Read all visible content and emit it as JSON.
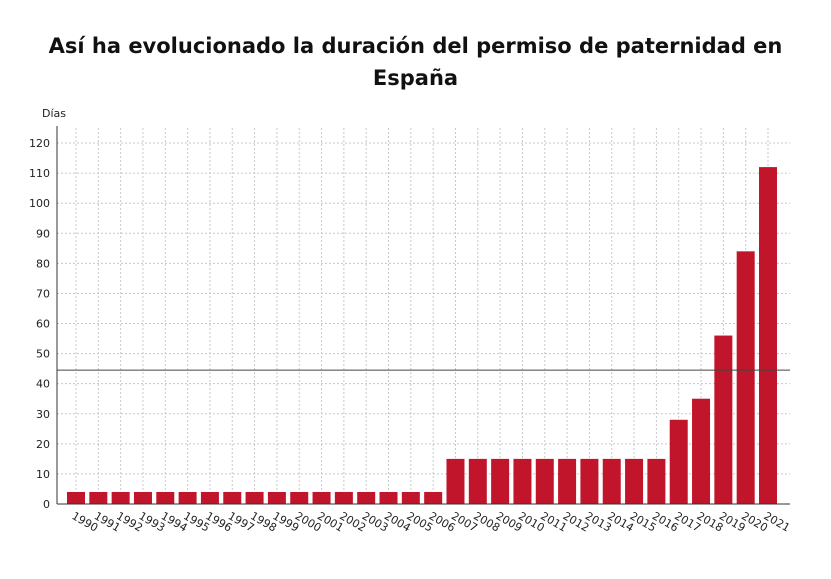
{
  "chart_data": {
    "type": "bar",
    "title_line1": "Así ha evolucionado la duración del permiso de paternidad en",
    "title_line2": "España",
    "ylabel": "Días",
    "ylim": [
      0,
      125
    ],
    "y_ticks": [
      0,
      10,
      20,
      30,
      40,
      50,
      60,
      70,
      80,
      90,
      100,
      110,
      120
    ],
    "reference_line": 44.5,
    "grid": true,
    "bar_color": "#c0152a",
    "categories": [
      "1990",
      "1991",
      "1992",
      "1993",
      "1994",
      "1995",
      "1996",
      "1997",
      "1998",
      "1999",
      "2000",
      "2001",
      "2002",
      "2003",
      "2004",
      "2005",
      "2006",
      "2007",
      "2008",
      "2009",
      "2010",
      "2011",
      "2012",
      "2013",
      "2014",
      "2015",
      "2016",
      "2017",
      "2018",
      "2019",
      "2020",
      "2021"
    ],
    "values": [
      4,
      4,
      4,
      4,
      4,
      4,
      4,
      4,
      4,
      4,
      4,
      4,
      4,
      4,
      4,
      4,
      4,
      15,
      15,
      15,
      15,
      15,
      15,
      15,
      15,
      15,
      15,
      28,
      35,
      56,
      84,
      112
    ]
  }
}
